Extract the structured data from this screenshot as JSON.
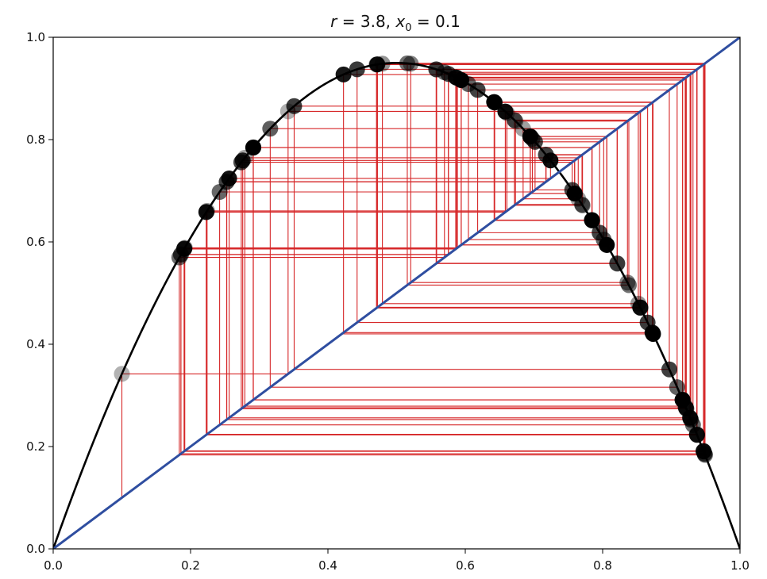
{
  "chart_data": {
    "type": "line",
    "title": "r = 3.8, x₀ = 0.1",
    "title_parts": {
      "r_symbol": "r",
      "r_eq": " = 3.8, ",
      "x_symbol": "x",
      "x_sub": "0",
      "x0_eq": " = 0.1"
    },
    "parameters": {
      "r": 3.8,
      "x0": 0.1
    },
    "xlim": [
      0.0,
      1.0
    ],
    "ylim": [
      0.0,
      1.0
    ],
    "xticks": [
      "0.0",
      "0.2",
      "0.4",
      "0.6",
      "0.8",
      "1.0"
    ],
    "yticks": [
      "0.0",
      "0.2",
      "0.4",
      "0.6",
      "0.8",
      "1.0"
    ],
    "xlabel": "",
    "ylabel": "",
    "grid": false,
    "series": [
      {
        "kind": "curve",
        "formula": "y = r*x*(1-x)",
        "color": "#000000"
      },
      {
        "kind": "diagonal",
        "formula": "y = x",
        "color": "#2f4ea0"
      },
      {
        "kind": "cobweb",
        "iterations": 100,
        "color": "#d62728"
      },
      {
        "kind": "points",
        "on": "curve",
        "color": "#000000"
      }
    ]
  },
  "colors": {
    "curve": "#000000",
    "diagonal": "#2f4ea0",
    "cobweb": "#d62728",
    "points": "#000000",
    "frame": "#000000"
  }
}
